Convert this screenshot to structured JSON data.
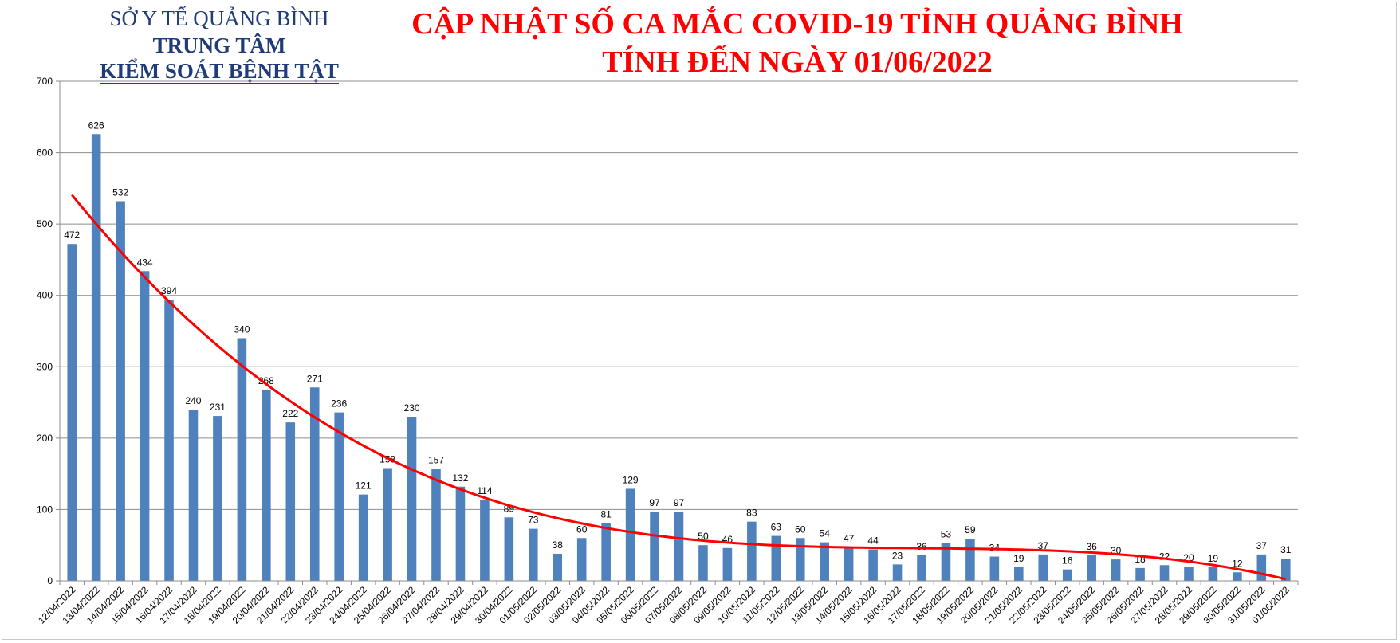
{
  "header": {
    "org_line1": "SỞ Y TẾ QUẢNG BÌNH",
    "org_line2": "TRUNG TÂM",
    "org_line3": "KIỂM SOÁT BỆNH TẬT",
    "title_line1": "CẬP NHẬT SỐ CA MẮC COVID-19 TỈNH QUẢNG BÌNH",
    "title_line2": "TÍNH ĐẾN NGÀY 01/06/2022"
  },
  "chart_data": {
    "type": "bar",
    "title": "CẬP NHẬT SỐ CA MẮC COVID-19 TỈNH QUẢNG BÌNH TÍNH ĐẾN NGÀY 01/06/2022",
    "xlabel": "",
    "ylabel": "",
    "ylim": [
      0,
      700
    ],
    "yticks": [
      0,
      100,
      200,
      300,
      400,
      500,
      600,
      700
    ],
    "grid": true,
    "legend": "none",
    "bar_color": "#4f81bd",
    "trendline": {
      "type": "polynomial",
      "color": "#ff0000"
    },
    "categories": [
      "12/04/2022",
      "13/04/2022",
      "14/04/2022",
      "15/04/2022",
      "16/04/2022",
      "17/04/2022",
      "18/04/2022",
      "19/04/2022",
      "20/04/2022",
      "21/04/2022",
      "22/04/2022",
      "23/04/2022",
      "24/04/2022",
      "25/04/2022",
      "26/04/2022",
      "27/04/2022",
      "28/04/2022",
      "29/04/2022",
      "30/04/2022",
      "01/05/2022",
      "02/05/2022",
      "03/05/2022",
      "04/05/2022",
      "05/05/2022",
      "06/05/2022",
      "07/05/2022",
      "08/05/2022",
      "09/05/2022",
      "10/05/2022",
      "11/05/2022",
      "12/05/2022",
      "13/05/2022",
      "14/05/2022",
      "15/05/2022",
      "16/05/2022",
      "17/05/2022",
      "18/05/2022",
      "19/05/2022",
      "20/05/2022",
      "21/05/2022",
      "22/05/2022",
      "23/05/2022",
      "24/05/2022",
      "25/05/2022",
      "26/05/2022",
      "27/05/2022",
      "28/05/2022",
      "29/05/2022",
      "30/05/2022",
      "31/05/2022",
      "01/06/2022"
    ],
    "values": [
      472,
      626,
      532,
      434,
      394,
      240,
      231,
      340,
      268,
      222,
      271,
      236,
      121,
      158,
      230,
      157,
      132,
      114,
      89,
      73,
      38,
      60,
      81,
      129,
      97,
      97,
      50,
      46,
      83,
      63,
      60,
      54,
      47,
      44,
      23,
      36,
      53,
      59,
      34,
      19,
      37,
      16,
      36,
      30,
      18,
      22,
      20,
      19,
      12,
      37,
      31
    ]
  }
}
